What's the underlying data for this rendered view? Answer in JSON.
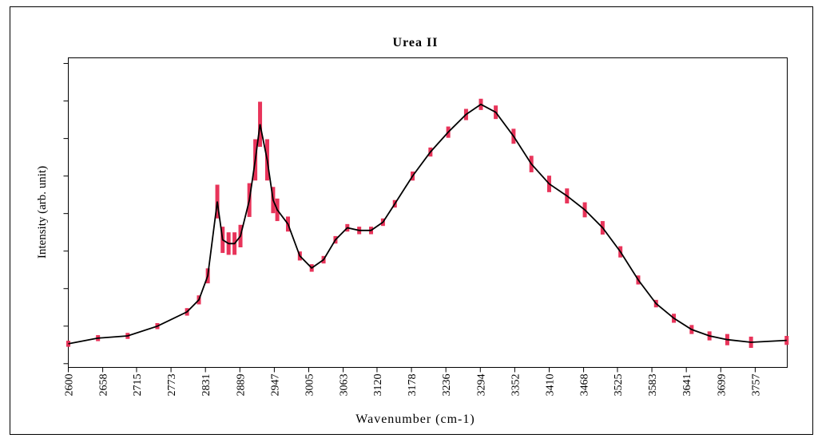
{
  "chart_data": {
    "type": "line",
    "title": "Urea II",
    "x_label": "Wavenumber (cm-1)",
    "y_label": "Intensity (arb. unit)",
    "x": [
      2600,
      2650,
      2700,
      2750,
      2800,
      2820,
      2835,
      2851,
      2860,
      2870,
      2880,
      2890,
      2905,
      2915,
      2923,
      2935,
      2945,
      2952,
      2970,
      2990,
      3010,
      3030,
      3050,
      3070,
      3090,
      3110,
      3130,
      3150,
      3180,
      3210,
      3240,
      3270,
      3295,
      3320,
      3350,
      3380,
      3410,
      3440,
      3470,
      3500,
      3530,
      3560,
      3590,
      3620,
      3650,
      3680,
      3710,
      3750,
      3810
    ],
    "series": [
      {
        "name": "Urea II",
        "color": "#000000",
        "error_color": "#e8345a",
        "values": [
          0.53,
          0.68,
          0.74,
          1.0,
          1.38,
          1.7,
          2.34,
          4.32,
          3.3,
          3.2,
          3.2,
          3.4,
          4.36,
          5.43,
          6.38,
          5.43,
          4.36,
          4.1,
          3.72,
          2.87,
          2.55,
          2.77,
          3.3,
          3.62,
          3.55,
          3.55,
          3.77,
          4.26,
          5.0,
          5.64,
          6.17,
          6.64,
          6.91,
          6.7,
          6.06,
          5.32,
          4.79,
          4.47,
          4.1,
          3.62,
          2.98,
          2.23,
          1.6,
          1.21,
          0.91,
          0.74,
          0.64,
          0.57,
          0.62
        ],
        "errors": [
          0.08,
          0.08,
          0.08,
          0.08,
          0.1,
          0.12,
          0.2,
          0.45,
          0.35,
          0.3,
          0.3,
          0.3,
          0.45,
          0.55,
          0.6,
          0.55,
          0.35,
          0.3,
          0.2,
          0.12,
          0.1,
          0.1,
          0.1,
          0.1,
          0.1,
          0.1,
          0.1,
          0.1,
          0.12,
          0.12,
          0.15,
          0.15,
          0.15,
          0.18,
          0.2,
          0.22,
          0.22,
          0.2,
          0.2,
          0.18,
          0.15,
          0.12,
          0.1,
          0.12,
          0.12,
          0.12,
          0.15,
          0.15,
          0.12
        ]
      }
    ],
    "xlim": [
      2600,
      3811
    ],
    "xticks": [
      2600,
      2658,
      2715,
      2773,
      2831,
      2889,
      2947,
      3005,
      3063,
      3120,
      3178,
      3236,
      3294,
      3352,
      3410,
      3468,
      3525,
      3583,
      3641,
      3699,
      3757
    ],
    "ylim": [
      -0.1,
      8.15
    ],
    "yticks": [
      0,
      1,
      2,
      3,
      4,
      5,
      6,
      7,
      8
    ]
  }
}
